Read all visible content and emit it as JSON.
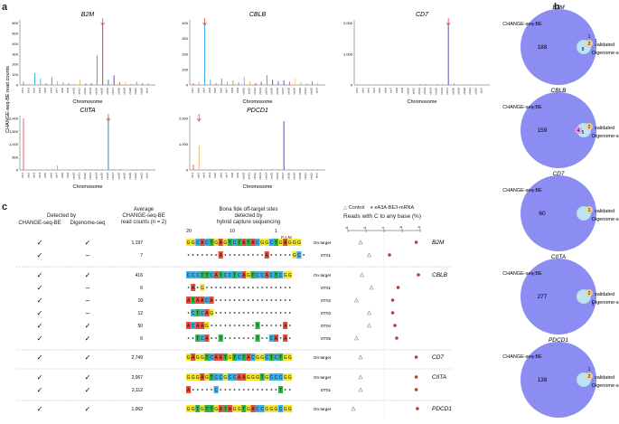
{
  "panels": {
    "a": "a",
    "b": "b",
    "c": "c"
  },
  "panel_a": {
    "ylabel": "CHANGE-seq-BE read counts",
    "xlabel": "Chromosome",
    "chromosomes": [
      "chr1",
      "chr2",
      "chr3",
      "chr4",
      "chr5",
      "chr6",
      "chr7",
      "chr8",
      "chr9",
      "chr10",
      "chr11",
      "chr12",
      "chr13",
      "chr14",
      "chr15",
      "chr16",
      "chr17",
      "chr18",
      "chr19",
      "chr20",
      "chr21",
      "chr22",
      "chrX"
    ],
    "plots": [
      {
        "gene": "B2M",
        "yticks": [
          "0",
          "100",
          "200",
          "300",
          "400",
          "500",
          "600"
        ],
        "ymax": 700,
        "target_chr": 15
      },
      {
        "gene": "CBLB",
        "yticks": [
          "0",
          "100",
          "200",
          "300",
          "400"
        ],
        "ymax": 450,
        "target_chr": 3
      },
      {
        "gene": "CD7",
        "yticks": [
          "0",
          "1,000",
          "2,000"
        ],
        "ymax": 3000,
        "target_chr": 17
      },
      {
        "gene": "CIITA",
        "yticks": [
          "0",
          "500",
          "1,000",
          "1,500",
          "2,000"
        ],
        "ymax": 2200,
        "target_chr": 16
      },
      {
        "gene": "PDCD1",
        "yticks": [
          "0",
          "1,000",
          "2,000"
        ],
        "ymax": 2300,
        "target_chr": 2
      }
    ]
  },
  "panel_b": {
    "outer_label": "CHANGE-seq-BE",
    "validated_label": "validated",
    "digenome_label": "Digenome-seq",
    "venns": [
      {
        "gene": "B2M",
        "main": "188",
        "digenome": "8",
        "overlap": "2",
        "validated_only": "1",
        "extra": "1"
      },
      {
        "gene": "CBLB",
        "main": "159",
        "validated": "4",
        "overlap": "2",
        "digenome": "5"
      },
      {
        "gene": "CD7",
        "main": "60",
        "overlap": "1"
      },
      {
        "gene": "CIITA",
        "main": "277",
        "overlap": "2",
        "digenome_only": "1"
      },
      {
        "gene": "PDCD1",
        "main": "138",
        "overlap": "2",
        "extra": "1"
      }
    ]
  },
  "panel_c": {
    "headers": {
      "detected_by": "Detected by",
      "col_cbe": "CHANGE-seq-BE",
      "col_dig": "Digenome-seq",
      "avg": "Average",
      "avg2": "CHANGE-seq-BE",
      "avg3": "read counts (n = 2)",
      "bona": "Bona fide off-target sites",
      "bona2": "detected by",
      "bona3": "hybrid capture sequencing",
      "pos20": "20",
      "pos10": "10",
      "pos1": "1",
      "pam": "P A M",
      "reads_title": "Reads with C to any base (%)"
    },
    "legend": {
      "control": "Control",
      "treated": "eA3A-BE3-mRNA"
    },
    "axis_ticks": [
      "0.01",
      "0.1",
      "1",
      "10",
      "100"
    ],
    "check": "✓",
    "dash": "–",
    "rows": [
      {
        "gene": "B2M",
        "cbe": true,
        "dig": true,
        "count": "1,197",
        "site": "On-target",
        "seq": "GGCACTGAGTCTATACGGCTGAGGG"
      },
      {
        "gene": "",
        "cbe": true,
        "dig": false,
        "count": "7",
        "site": "OT01",
        "seq": "•••••••A•••••••••A•••••GC•"
      },
      {
        "gene": "CBLB",
        "cbe": true,
        "dig": true,
        "count": "416",
        "site": "On-target",
        "seq": "CCCTTCATCCTCAGTCCACTCGG"
      },
      {
        "gene": "",
        "cbe": true,
        "dig": false,
        "count": "6",
        "site": "OT01",
        "seq": "•A•G•••••••••••••••••••"
      },
      {
        "gene": "",
        "cbe": true,
        "dig": false,
        "count": "10",
        "site": "OT02",
        "seq": "ATAACA•••••••••••••••••"
      },
      {
        "gene": "",
        "cbe": true,
        "dig": false,
        "count": "12",
        "site": "OT03",
        "seq": "•CTCAG•••••••••••••••••"
      },
      {
        "gene": "",
        "cbe": true,
        "dig": true,
        "count": "50",
        "site": "OT04",
        "seq": "ACAAG••••••••••T•••••A•"
      },
      {
        "gene": "",
        "cbe": true,
        "dig": true,
        "count": "6",
        "site": "OT05",
        "seq": "••TCA••T•••••••T••CA•A•"
      },
      {
        "gene": "CD7",
        "cbe": true,
        "dig": true,
        "count": "2,749",
        "site": "On-target",
        "seq": "GAGGTCAATGTCTACGGCTCTGG"
      },
      {
        "gene": "CIITA",
        "cbe": true,
        "dig": true,
        "count": "2,067",
        "site": "On-target",
        "seq": "GGGAGTCCGCCAAGGGTGCCCGG"
      },
      {
        "gene": "",
        "cbe": true,
        "dig": true,
        "count": "2,112",
        "site": "OT01",
        "seq": "A•••••C•••••••••••••T••"
      },
      {
        "gene": "PDCD1",
        "cbe": true,
        "dig": true,
        "count": "1,062",
        "site": "On-target",
        "seq": "GGTGTTGATAGGTGACCGGGCGG"
      }
    ],
    "reads_data": [
      {
        "control": 0.05,
        "treated": 60
      },
      {
        "control": 0.15,
        "treated": 2
      },
      {
        "control": 0.06,
        "treated": 80
      },
      {
        "control": 0.2,
        "treated": 6
      },
      {
        "control": 0.03,
        "treated": 3
      },
      {
        "control": 0.15,
        "treated": 3
      },
      {
        "control": 0.15,
        "treated": 4
      },
      {
        "control": 0.03,
        "treated": 5
      },
      {
        "control": 0.05,
        "treated": 60
      },
      {
        "control": 0.05,
        "treated": 60
      },
      {
        "control": 0.05,
        "treated": 60
      },
      {
        "control": 0.02,
        "treated": 70
      }
    ]
  },
  "colors": {
    "A": "#e74c3c",
    "C": "#3ab0e6",
    "G": "#f4e62a",
    "T": "#2fb24b",
    "venn": "#8c8df2",
    "treated": "#c0392b",
    "control": "#888888"
  }
}
